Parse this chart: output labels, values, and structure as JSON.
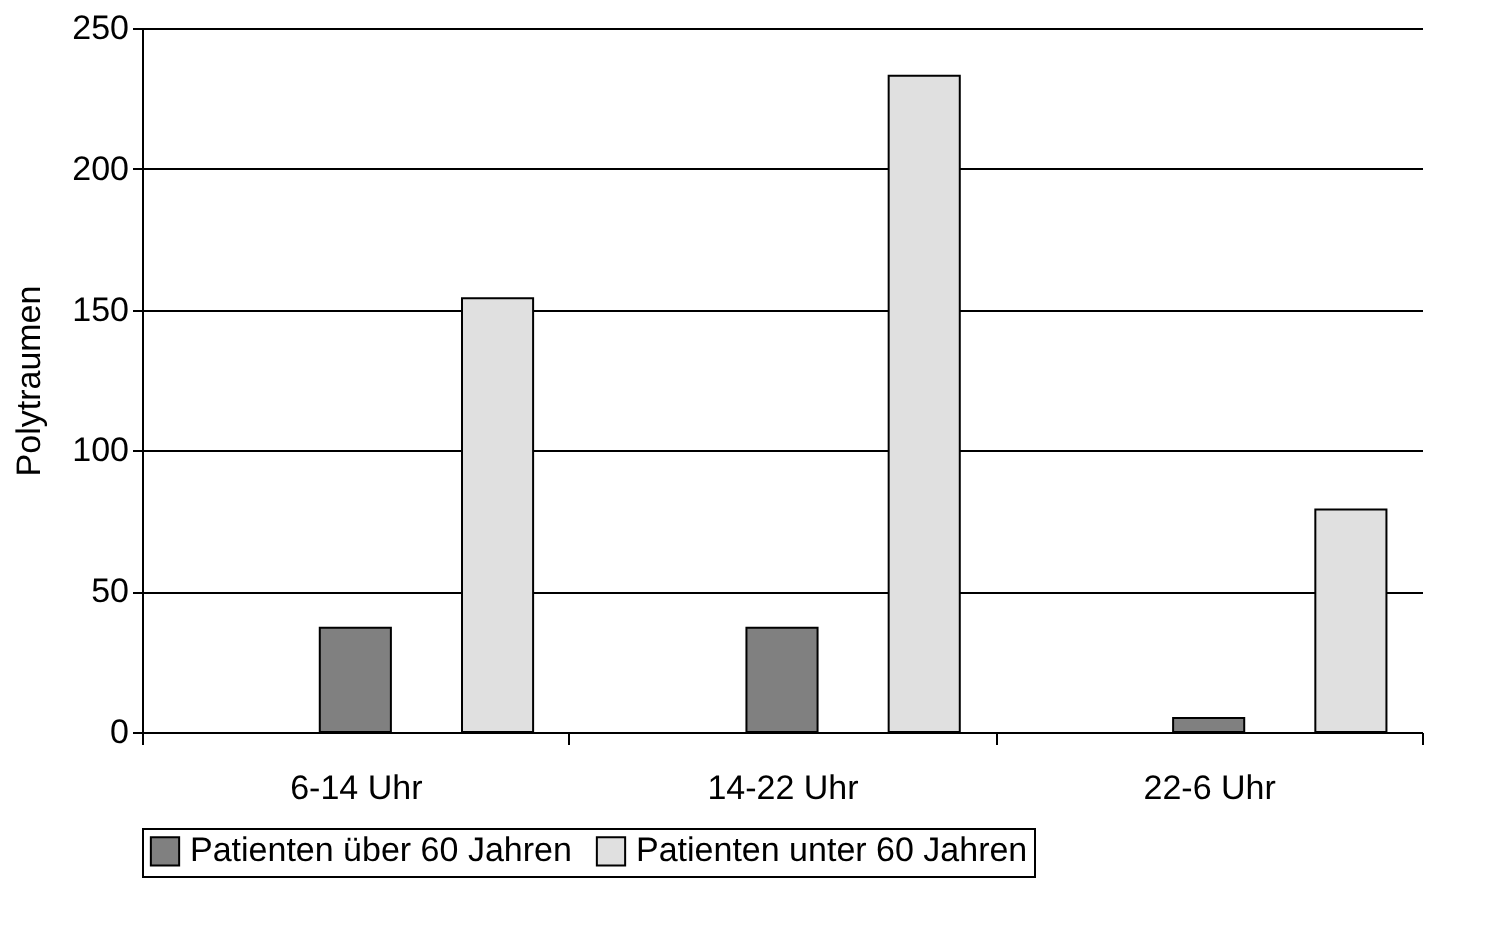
{
  "chart_data": {
    "type": "bar",
    "ylabel": "Polytraumen",
    "categories": [
      "6-14 Uhr",
      "14-22 Uhr",
      "22-6 Uhr"
    ],
    "series": [
      {
        "name": "Patienten über 60 Jahren",
        "color": "#808080",
        "values": [
          37,
          37,
          5
        ]
      },
      {
        "name": "Patienten unter 60 Jahren",
        "color": "#e0e0e0",
        "values": [
          154,
          233,
          79
        ]
      }
    ],
    "ylim": [
      0,
      250
    ],
    "yticks": [
      0,
      50,
      100,
      150,
      200,
      250
    ],
    "grid": "y",
    "legend": "bottom"
  }
}
